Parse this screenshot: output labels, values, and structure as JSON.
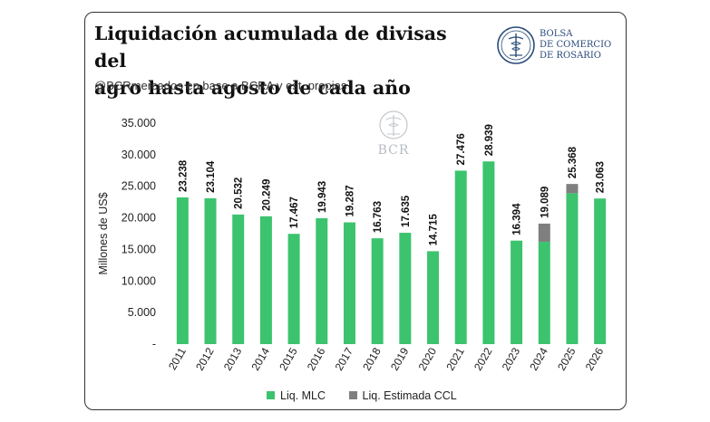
{
  "header": {
    "title_line1": "Liquidación acumulada de divisas del",
    "title_line2": "agro hasta agosto de cada año",
    "subtitle": "@BCRmercados en base a BCRA y est. propias"
  },
  "logo": {
    "line1": "BOLSA",
    "line2": "DE COMERCIO",
    "line3": "DE ROSARIO",
    "watermark": "BCR"
  },
  "colors": {
    "mlc": "#3cc36e",
    "ccl": "#7f7f7f",
    "logo_blue": "#2a4a7a"
  },
  "chart_data": {
    "type": "bar",
    "stacked": true,
    "categories": [
      "2011",
      "2012",
      "2013",
      "2014",
      "2015",
      "2016",
      "2017",
      "2018",
      "2019",
      "2020",
      "2021",
      "2022",
      "2023",
      "2024",
      "2025",
      "2026"
    ],
    "series": [
      {
        "name": "Liq. MLC",
        "values": [
          23238,
          23104,
          20532,
          20249,
          17467,
          19943,
          19287,
          16763,
          17635,
          14715,
          27476,
          28939,
          16394,
          16200,
          23900,
          23063
        ]
      },
      {
        "name": "Liq. Estimada CCL",
        "values": [
          0,
          0,
          0,
          0,
          0,
          0,
          0,
          0,
          0,
          0,
          0,
          0,
          0,
          2889,
          1468,
          0
        ]
      }
    ],
    "data_labels": [
      "23.238",
      "23.104",
      "20.532",
      "20.249",
      "17.467",
      "19.943",
      "19.287",
      "16.763",
      "17.635",
      "14.715",
      "27.476",
      "28.939",
      "16.394",
      "19.089",
      "25.368",
      "23.063"
    ],
    "ylabel": "Millones de US$",
    "xlabel": "",
    "ylim": [
      0,
      35000
    ],
    "yticks": [
      0,
      5000,
      10000,
      15000,
      20000,
      25000,
      30000,
      35000
    ],
    "ytick_labels": [
      "-",
      "5.000",
      "10.000",
      "15.000",
      "20.000",
      "25.000",
      "30.000",
      "35.000"
    ],
    "grid": false,
    "legend": "bottom"
  }
}
